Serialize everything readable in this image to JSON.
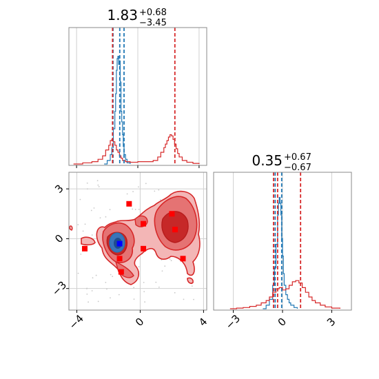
{
  "chart_data": [
    {
      "panel": "top-left-histogram",
      "type": "histogram",
      "title_value": "1.83",
      "title_plus": "+0.68",
      "title_minus": "−3.45",
      "xlim": [
        -4.5,
        4.5
      ],
      "x_ticks": [
        -4,
        0,
        4
      ],
      "grid": true,
      "dashed_lines": [
        {
          "x": -1.62,
          "color": "#1f77b4"
        },
        {
          "x": -1.18,
          "color": "#1f77b4"
        },
        {
          "x": -0.9,
          "color": "#1f77b4"
        },
        {
          "x": -1.65,
          "color": "#d62728"
        },
        {
          "x": 2.42,
          "color": "#d62728"
        }
      ],
      "series": [
        {
          "color": "#1f77b4",
          "x": [
            -2.2,
            -2.0,
            -1.8,
            -1.7,
            -1.6,
            -1.5,
            -1.45,
            -1.4,
            -1.35,
            -1.3,
            -1.25,
            -1.2,
            -1.15,
            -1.1,
            -1.05,
            -1.0,
            -0.95,
            -0.9,
            -0.8,
            -0.7,
            -0.5
          ],
          "y": [
            0.0,
            0.03,
            0.08,
            0.14,
            0.3,
            0.45,
            0.6,
            0.8,
            0.9,
            0.92,
            0.85,
            0.88,
            0.7,
            0.45,
            0.36,
            0.25,
            0.15,
            0.08,
            0.04,
            0.01,
            0.0
          ]
        },
        {
          "color": "#d62728",
          "x": [
            -4.2,
            -3.6,
            -3.0,
            -2.6,
            -2.3,
            -2.1,
            -1.9,
            -1.8,
            -1.7,
            -1.6,
            -1.5,
            -1.4,
            -1.3,
            -1.2,
            -1.1,
            -1.0,
            -0.8,
            -0.5,
            0.0,
            0.5,
            1.0,
            1.3,
            1.5,
            1.7,
            1.8,
            1.9,
            2.0,
            2.1,
            2.2,
            2.3,
            2.4,
            2.5,
            2.6,
            2.7,
            2.9,
            3.2,
            3.6,
            4.0
          ],
          "y": [
            0.0,
            0.01,
            0.02,
            0.04,
            0.07,
            0.12,
            0.16,
            0.2,
            0.21,
            0.19,
            0.16,
            0.12,
            0.1,
            0.07,
            0.05,
            0.03,
            0.02,
            0.015,
            0.02,
            0.02,
            0.03,
            0.06,
            0.1,
            0.14,
            0.17,
            0.2,
            0.23,
            0.25,
            0.24,
            0.21,
            0.17,
            0.13,
            0.09,
            0.06,
            0.03,
            0.015,
            0.005,
            0.0
          ]
        }
      ]
    },
    {
      "panel": "bottom-left-2d",
      "type": "contour-scatter",
      "xlim": [
        -4.5,
        4.2
      ],
      "ylim": [
        -4.3,
        4.0
      ],
      "x_ticks": [
        "−4",
        "0",
        "4"
      ],
      "y_ticks": [
        "3",
        "0",
        "−3"
      ],
      "x_tick_values": [
        -4,
        0,
        4
      ],
      "y_tick_values": [
        3,
        0,
        -3
      ],
      "grid": true,
      "markers": [
        {
          "x": -1.3,
          "y": -0.3,
          "color": "#0000ff",
          "shape": "square"
        },
        {
          "x": -0.7,
          "y": 2.1,
          "color": "#ff0000",
          "shape": "square"
        },
        {
          "x": 0.2,
          "y": 0.9,
          "color": "#ff0000",
          "shape": "square"
        },
        {
          "x": 2.0,
          "y": 1.5,
          "color": "#ff0000",
          "shape": "square"
        },
        {
          "x": 2.2,
          "y": 0.55,
          "color": "#ff0000",
          "shape": "square"
        },
        {
          "x": -3.5,
          "y": -0.6,
          "color": "#ff0000",
          "shape": "square"
        },
        {
          "x": 0.2,
          "y": -0.6,
          "color": "#ff0000",
          "shape": "square"
        },
        {
          "x": -1.3,
          "y": -1.2,
          "color": "#ff0000",
          "shape": "square"
        },
        {
          "x": 2.7,
          "y": -1.2,
          "color": "#ff0000",
          "shape": "square"
        },
        {
          "x": -1.2,
          "y": -2.0,
          "color": "#ff0000",
          "shape": "square"
        }
      ],
      "contour_colors": {
        "outer": "#f3b6b6",
        "middle": "#e57373",
        "inner": "#c62828",
        "line": "#d62728",
        "core_blue": "#3b74b8",
        "core_dark": "#1f4e8c"
      }
    },
    {
      "panel": "bottom-right-histogram",
      "type": "histogram",
      "title_value": "0.35",
      "title_plus": "+0.67",
      "title_minus": "−0.67",
      "xlim": [
        -4.2,
        4.2
      ],
      "x_ticks": [
        "−3",
        "0",
        "3"
      ],
      "x_tick_values": [
        -3,
        0,
        3
      ],
      "grid": true,
      "dashed_lines": [
        {
          "x": -0.45,
          "color": "#1f77b4"
        },
        {
          "x": -0.05,
          "color": "#1f77b4"
        },
        {
          "x": -0.3,
          "color": "#d62728"
        },
        {
          "x": -0.55,
          "color": "#d62728"
        },
        {
          "x": 1.1,
          "color": "#d62728"
        }
      ],
      "series": [
        {
          "color": "#1f77b4",
          "x": [
            -1.2,
            -1.0,
            -0.8,
            -0.6,
            -0.5,
            -0.4,
            -0.3,
            -0.25,
            -0.2,
            -0.15,
            -0.1,
            -0.05,
            0.0,
            0.05,
            0.1,
            0.2,
            0.3,
            0.4,
            0.5,
            0.7,
            0.9
          ],
          "y": [
            0.0,
            0.03,
            0.08,
            0.2,
            0.35,
            0.55,
            0.8,
            0.9,
            0.95,
            0.9,
            0.8,
            0.6,
            0.45,
            0.3,
            0.2,
            0.12,
            0.08,
            0.05,
            0.03,
            0.01,
            0.0
          ]
        },
        {
          "color": "#d62728",
          "x": [
            -3.2,
            -2.8,
            -2.4,
            -2.0,
            -1.6,
            -1.3,
            -1.0,
            -0.8,
            -0.6,
            -0.4,
            -0.2,
            0.0,
            0.2,
            0.4,
            0.6,
            0.8,
            1.0,
            1.2,
            1.4,
            1.6,
            1.8,
            2.0,
            2.3,
            2.6,
            3.0,
            3.5
          ],
          "y": [
            0.0,
            0.005,
            0.01,
            0.02,
            0.03,
            0.05,
            0.07,
            0.1,
            0.14,
            0.17,
            0.18,
            0.16,
            0.17,
            0.2,
            0.23,
            0.24,
            0.22,
            0.18,
            0.14,
            0.1,
            0.07,
            0.05,
            0.03,
            0.015,
            0.005,
            0.0
          ]
        }
      ]
    }
  ]
}
